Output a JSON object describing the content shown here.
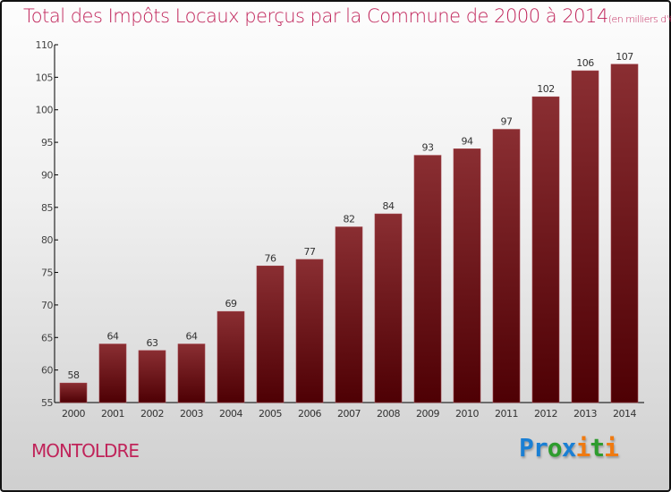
{
  "chart_data": {
    "type": "bar",
    "title": "Total des Impôts Locaux perçus par la Commune de 2000 à 2014",
    "subtitle": "(en milliers d'€)",
    "categories": [
      "2000",
      "2001",
      "2002",
      "2003",
      "2004",
      "2005",
      "2006",
      "2007",
      "2008",
      "2009",
      "2010",
      "2011",
      "2012",
      "2013",
      "2014"
    ],
    "values": [
      58,
      64,
      63,
      64,
      69,
      76,
      77,
      82,
      84,
      93,
      94,
      97,
      102,
      106,
      107
    ],
    "ylim": [
      55,
      110
    ],
    "yticks": [
      55,
      60,
      65,
      70,
      75,
      80,
      85,
      90,
      95,
      100,
      105,
      110
    ],
    "xlabel": "",
    "ylabel": "",
    "bar_color": "#5a0a0e",
    "title_color": "#c0245a"
  },
  "commune": "MONTOLDRE",
  "logo": {
    "text": "Proxiti",
    "letters": [
      [
        "P",
        "#1a7fd4"
      ],
      [
        "r",
        "#1a7fd4"
      ],
      [
        "o",
        "#2e9c2e"
      ],
      [
        "x",
        "#1a7fd4"
      ],
      [
        "i",
        "#f07a10"
      ],
      [
        "t",
        "#2e9c2e"
      ],
      [
        "i",
        "#f07a10"
      ]
    ]
  }
}
